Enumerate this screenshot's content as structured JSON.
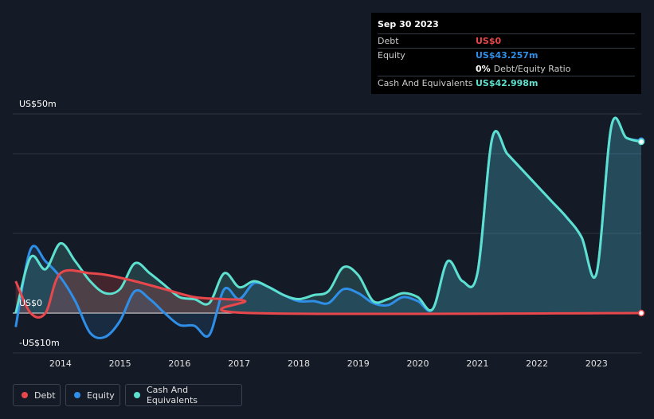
{
  "tooltip": {
    "date": "Sep 30 2023",
    "rows": [
      {
        "label": "Debt",
        "value": "US$0",
        "color": "#e8474c"
      },
      {
        "label": "Equity",
        "value": "US$43.257m",
        "color": "#2f8fe8"
      },
      {
        "label": "",
        "value": "0%",
        "sub": "Debt/Equity Ratio",
        "color": "#ffffff"
      },
      {
        "label": "Cash And Equivalents",
        "value": "US$42.998m",
        "color": "#5de0cf"
      }
    ]
  },
  "legend": [
    {
      "name": "Debt",
      "color": "#e8474c"
    },
    {
      "name": "Equity",
      "color": "#2f8fe8"
    },
    {
      "name": "Cash And Equivalents",
      "color": "#5de0cf"
    }
  ],
  "chart_data": {
    "type": "area",
    "ylim": [
      -10,
      50
    ],
    "xlim": [
      2013.2,
      2023.75
    ],
    "y_tick_labels": [
      {
        "value": 50,
        "label": "US$50m"
      },
      {
        "value": 0,
        "label": "US$0"
      },
      {
        "value": -10,
        "label": "-US$10m"
      }
    ],
    "x_ticks": [
      2014,
      2015,
      2016,
      2017,
      2018,
      2019,
      2020,
      2021,
      2022,
      2023
    ],
    "gridlines": [
      50,
      40,
      20,
      0
    ],
    "series": [
      {
        "name": "Debt",
        "color": "#e8474c",
        "points": [
          [
            2013.25,
            8
          ],
          [
            2013.5,
            0
          ],
          [
            2013.75,
            0
          ],
          [
            2014.0,
            10
          ],
          [
            2014.5,
            10
          ],
          [
            2014.8,
            9.5
          ],
          [
            2015.25,
            8
          ],
          [
            2015.75,
            6
          ],
          [
            2016.25,
            4
          ],
          [
            2016.75,
            3.5
          ],
          [
            2017.1,
            3
          ],
          [
            2017.2,
            0
          ],
          [
            2023.75,
            0
          ]
        ]
      },
      {
        "name": "Equity",
        "color": "#2f8fe8",
        "points": [
          [
            2013.25,
            -3.5
          ],
          [
            2013.5,
            16
          ],
          [
            2013.75,
            13
          ],
          [
            2014.0,
            9
          ],
          [
            2014.25,
            3
          ],
          [
            2014.5,
            -5
          ],
          [
            2014.75,
            -6
          ],
          [
            2015.0,
            -2
          ],
          [
            2015.25,
            5.5
          ],
          [
            2015.5,
            3.5
          ],
          [
            2015.75,
            0
          ],
          [
            2016.0,
            -3
          ],
          [
            2016.25,
            -3.2
          ],
          [
            2016.5,
            -5.5
          ],
          [
            2016.75,
            6
          ],
          [
            2017.0,
            3.5
          ],
          [
            2017.25,
            7.5
          ],
          [
            2017.5,
            6.5
          ],
          [
            2017.75,
            4.5
          ],
          [
            2018.0,
            3
          ],
          [
            2018.25,
            3
          ],
          [
            2018.5,
            2.5
          ],
          [
            2018.75,
            6
          ],
          [
            2019.0,
            5
          ],
          [
            2019.25,
            2.5
          ],
          [
            2019.5,
            2
          ],
          [
            2019.75,
            4
          ],
          [
            2020.0,
            3
          ],
          [
            2020.25,
            1
          ],
          [
            2020.5,
            13
          ],
          [
            2020.75,
            8
          ],
          [
            2021.0,
            10
          ],
          [
            2021.25,
            44
          ],
          [
            2021.5,
            40
          ],
          [
            2021.75,
            36
          ],
          [
            2022.0,
            32
          ],
          [
            2022.25,
            28
          ],
          [
            2022.5,
            24
          ],
          [
            2022.75,
            19
          ],
          [
            2023.0,
            10
          ],
          [
            2023.25,
            47
          ],
          [
            2023.5,
            44
          ],
          [
            2023.75,
            43.257
          ]
        ]
      },
      {
        "name": "Cash And Equivalents",
        "color": "#5de0cf",
        "points": [
          [
            2013.25,
            0
          ],
          [
            2013.5,
            14
          ],
          [
            2013.75,
            11
          ],
          [
            2014.0,
            17.5
          ],
          [
            2014.25,
            13
          ],
          [
            2014.5,
            8
          ],
          [
            2014.75,
            5
          ],
          [
            2015.0,
            6
          ],
          [
            2015.25,
            12.5
          ],
          [
            2015.5,
            10
          ],
          [
            2015.75,
            7
          ],
          [
            2016.0,
            4
          ],
          [
            2016.25,
            3.5
          ],
          [
            2016.5,
            2.5
          ],
          [
            2016.75,
            10
          ],
          [
            2017.0,
            6.5
          ],
          [
            2017.25,
            8
          ],
          [
            2017.5,
            6.5
          ],
          [
            2017.75,
            4.5
          ],
          [
            2018.0,
            3.5
          ],
          [
            2018.25,
            4.5
          ],
          [
            2018.5,
            5.5
          ],
          [
            2018.75,
            11.5
          ],
          [
            2019.0,
            9.5
          ],
          [
            2019.25,
            3
          ],
          [
            2019.5,
            3.5
          ],
          [
            2019.75,
            5
          ],
          [
            2020.0,
            4
          ],
          [
            2020.25,
            1
          ],
          [
            2020.5,
            13
          ],
          [
            2020.75,
            8
          ],
          [
            2021.0,
            10
          ],
          [
            2021.25,
            44
          ],
          [
            2021.5,
            40
          ],
          [
            2021.75,
            36
          ],
          [
            2022.0,
            32
          ],
          [
            2022.25,
            28
          ],
          [
            2022.5,
            24
          ],
          [
            2022.75,
            19
          ],
          [
            2023.0,
            10
          ],
          [
            2023.25,
            47
          ],
          [
            2023.5,
            44
          ],
          [
            2023.75,
            42.998
          ]
        ]
      }
    ]
  }
}
